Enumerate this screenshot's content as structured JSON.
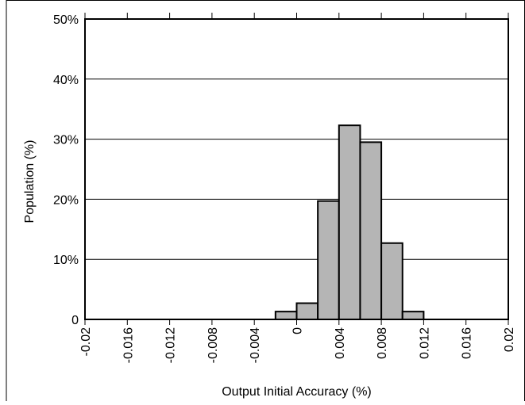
{
  "chart_data": {
    "type": "bar",
    "title": "",
    "xlabel": "Output Initial Accuracy (%)",
    "ylabel": "Population (%)",
    "xlim": [
      -0.02,
      0.02
    ],
    "ylim": [
      0,
      50
    ],
    "x_ticks": [
      "-0.02",
      "-0.016",
      "-0.012",
      "-0.008",
      "-0.004",
      "0",
      "0.004",
      "0.008",
      "0.012",
      "0.016",
      "0.02"
    ],
    "y_ticks": [
      "0",
      "10%",
      "20%",
      "30%",
      "40%",
      "50%"
    ],
    "grid": "horizontal",
    "bin_width": 0.002,
    "bins": [
      {
        "x_start": -0.002,
        "x_end": 0.0,
        "value": 1.3
      },
      {
        "x_start": 0.0,
        "x_end": 0.002,
        "value": 2.7
      },
      {
        "x_start": 0.002,
        "x_end": 0.004,
        "value": 19.7
      },
      {
        "x_start": 0.004,
        "x_end": 0.006,
        "value": 32.3
      },
      {
        "x_start": 0.006,
        "x_end": 0.008,
        "value": 29.5
      },
      {
        "x_start": 0.008,
        "x_end": 0.01,
        "value": 12.7
      },
      {
        "x_start": 0.01,
        "x_end": 0.012,
        "value": 1.3
      }
    ],
    "colors": {
      "bar_fill": "#b5b5b5",
      "bar_stroke": "#000000",
      "grid": "#000000"
    }
  }
}
